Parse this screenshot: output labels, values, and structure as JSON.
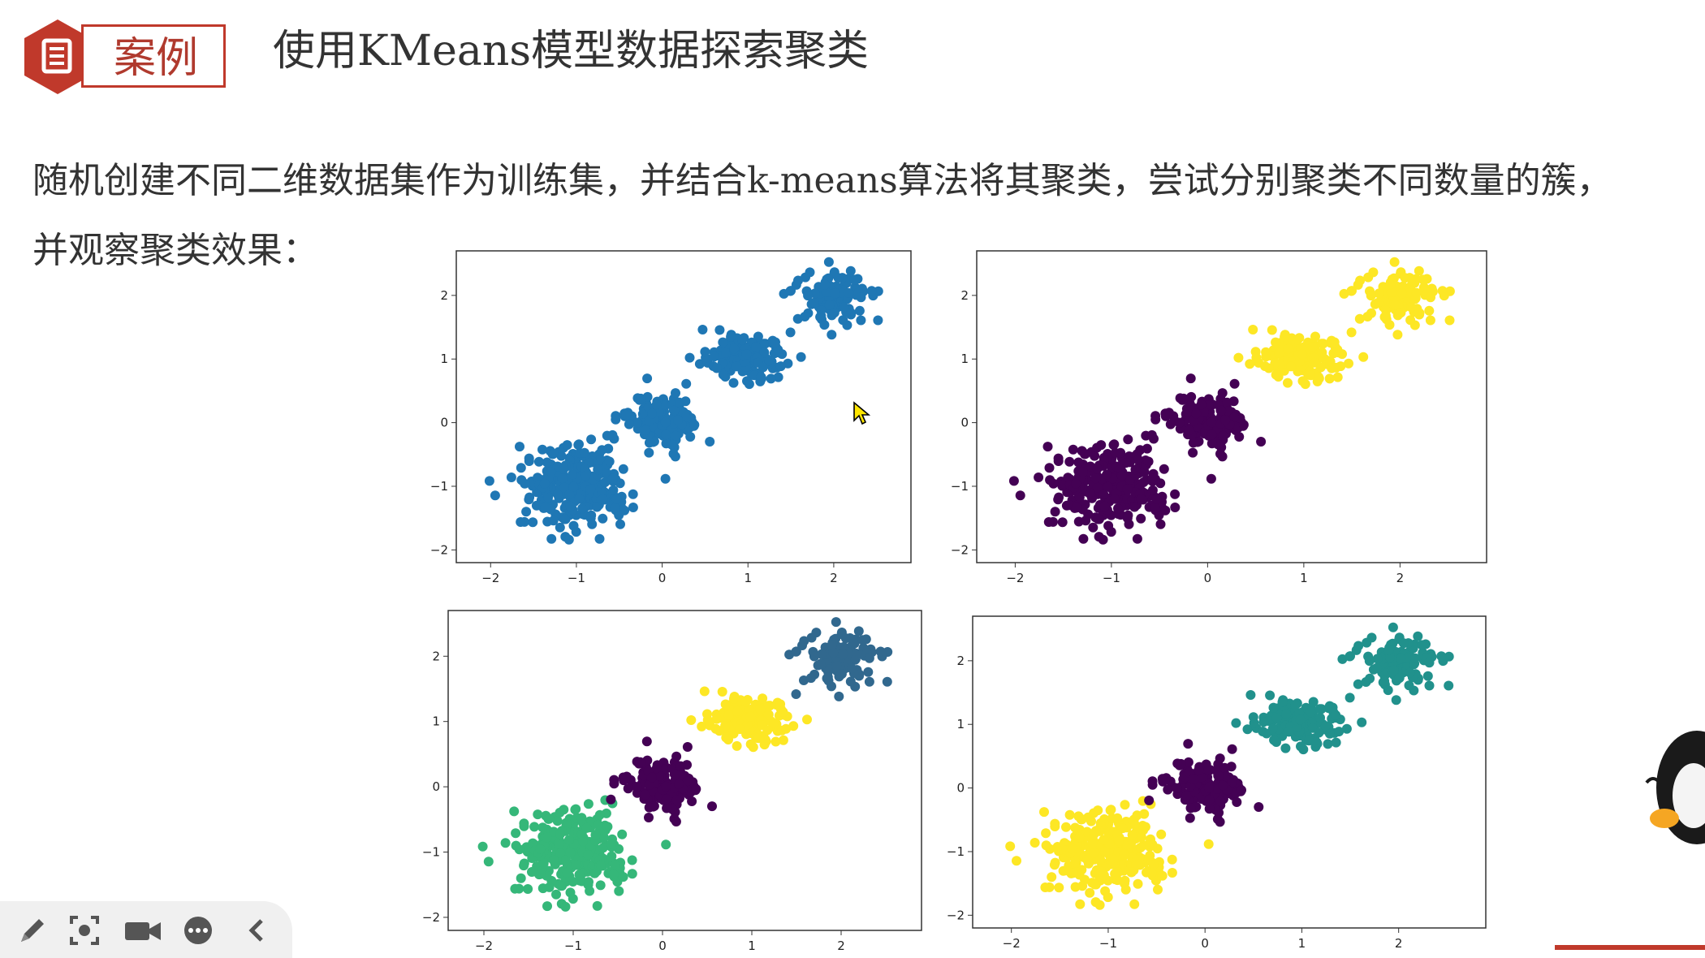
{
  "header": {
    "badge_label": "案例",
    "title": "使用KMeans模型数据探索聚类",
    "icon": "document-icon"
  },
  "description": {
    "line1": "随机创建不同二维数据集作为训练集，并结合k-means算法将其聚类，尝试分别聚类不同数量的簇，",
    "line2": "并观察聚类效果："
  },
  "colors": {
    "accent_red": "#c0392b",
    "blob_blue": "#1f77b4",
    "viridis_purple": "#440154",
    "viridis_yellow": "#fde725",
    "viridis_teal": "#21918c",
    "viridis_green": "#35b779",
    "viridis_blue": "#31688e"
  },
  "chart_data": [
    {
      "type": "scatter",
      "title": "",
      "clusters": [
        {
          "center": [
            -1.0,
            -1.0
          ],
          "color": "#1f77b4"
        },
        {
          "center": [
            0.0,
            0.0
          ],
          "color": "#1f77b4"
        },
        {
          "center": [
            1.0,
            1.0
          ],
          "color": "#1f77b4"
        },
        {
          "center": [
            2.0,
            2.0
          ],
          "color": "#1f77b4"
        }
      ],
      "xticks": [
        -2,
        -1,
        0,
        1,
        2
      ],
      "yticks": [
        -2,
        -1,
        0,
        1,
        2
      ],
      "xlim": [
        -2.4,
        2.9
      ],
      "ylim": [
        -2.2,
        2.7
      ]
    },
    {
      "type": "scatter",
      "title": "",
      "clusters": [
        {
          "center": [
            -1.0,
            -1.0
          ],
          "color": "#440154"
        },
        {
          "center": [
            0.0,
            0.0
          ],
          "color": "#440154"
        },
        {
          "center": [
            1.0,
            1.0
          ],
          "color": "#fde725"
        },
        {
          "center": [
            2.0,
            2.0
          ],
          "color": "#fde725"
        }
      ],
      "xticks": [
        -2,
        -1,
        0,
        1,
        2
      ],
      "yticks": [
        -2,
        -1,
        0,
        1,
        2
      ],
      "xlim": [
        -2.4,
        2.9
      ],
      "ylim": [
        -2.2,
        2.7
      ]
    },
    {
      "type": "scatter",
      "title": "",
      "clusters": [
        {
          "center": [
            -1.0,
            -1.0
          ],
          "color": "#35b779"
        },
        {
          "center": [
            0.0,
            0.0
          ],
          "color": "#440154"
        },
        {
          "center": [
            1.0,
            1.0
          ],
          "color": "#fde725"
        },
        {
          "center": [
            2.0,
            2.0
          ],
          "color": "#31688e"
        }
      ],
      "xticks": [
        -2,
        -1,
        0,
        1,
        2
      ],
      "yticks": [
        -2,
        -1,
        0,
        1,
        2
      ],
      "xlim": [
        -2.4,
        2.9
      ],
      "ylim": [
        -2.2,
        2.7
      ]
    },
    {
      "type": "scatter",
      "title": "",
      "clusters": [
        {
          "center": [
            -1.0,
            -1.0
          ],
          "color": "#fde725"
        },
        {
          "center": [
            0.0,
            0.0
          ],
          "color": "#440154"
        },
        {
          "center": [
            1.0,
            1.0
          ],
          "color": "#21918c"
        },
        {
          "center": [
            2.0,
            2.0
          ],
          "color": "#21918c"
        }
      ],
      "xticks": [
        -2,
        -1,
        0,
        1,
        2
      ],
      "yticks": [
        -2,
        -1,
        0,
        1,
        2
      ],
      "xlim": [
        -2.4,
        2.9
      ],
      "ylim": [
        -2.2,
        2.7
      ]
    }
  ],
  "toolbar": {
    "items": [
      {
        "name": "pen-icon",
        "glyph": "✎"
      },
      {
        "name": "screenshot-icon",
        "glyph": "⌖"
      },
      {
        "name": "camera-icon",
        "glyph": "▶"
      },
      {
        "name": "more-icon",
        "glyph": "⋯"
      },
      {
        "name": "collapse-icon",
        "glyph": "‹"
      }
    ]
  }
}
